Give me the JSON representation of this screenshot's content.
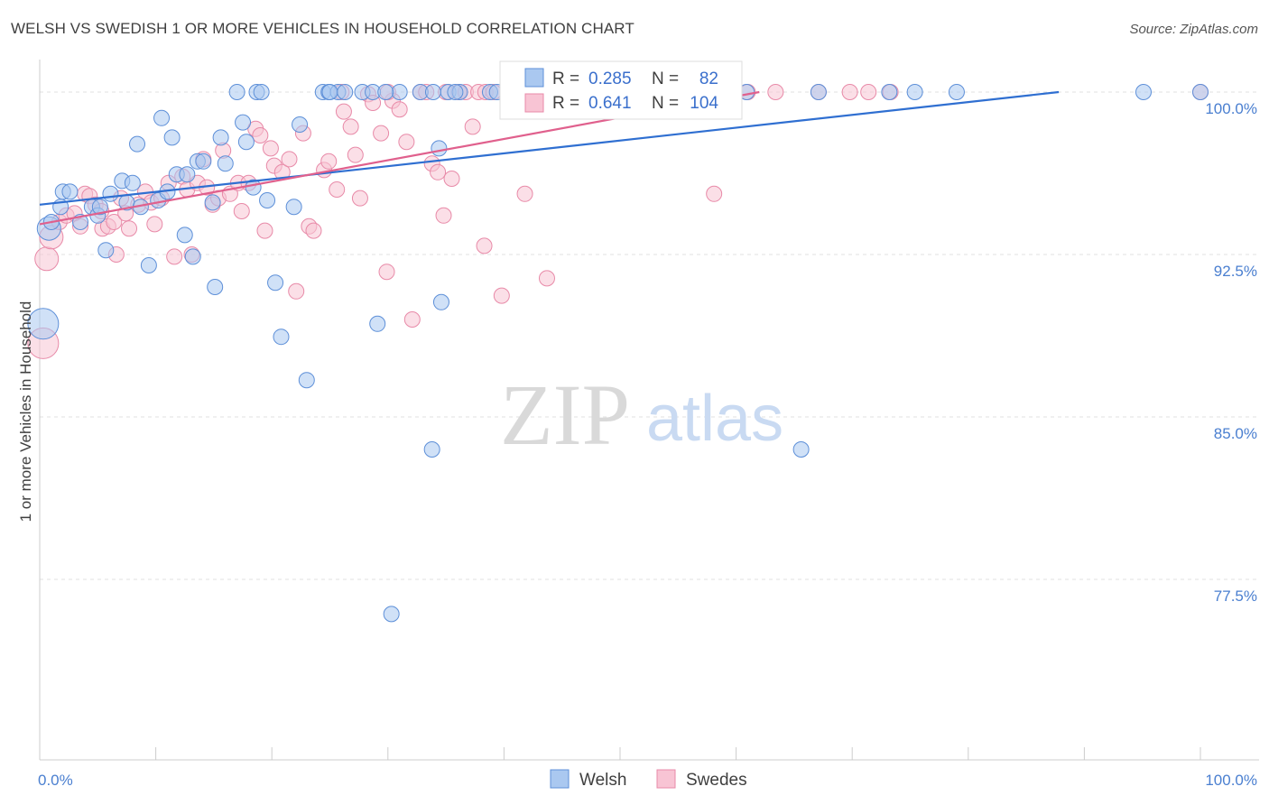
{
  "title": "WELSH VS SWEDISH 1 OR MORE VEHICLES IN HOUSEHOLD CORRELATION CHART",
  "source": "Source: ZipAtlas.com",
  "watermark": {
    "zip": "ZIP",
    "atlas": "atlas"
  },
  "colors": {
    "welsh_fill": "#aac8f0",
    "welsh_stroke": "#5d8fd8",
    "welsh_line": "#2f6fd1",
    "swedes_fill": "#f8c4d4",
    "swedes_stroke": "#e88aa8",
    "swedes_line": "#e0608d",
    "tick_text": "#4a7fd0",
    "grid": "#e0e0e0"
  },
  "legend_top": {
    "rows": [
      {
        "r_label": "R =",
        "r_value": "0.285",
        "n_label": "N =",
        "n_value": "82"
      },
      {
        "r_label": "R =",
        "r_value": "0.641",
        "n_label": "N =",
        "n_value": "104"
      }
    ]
  },
  "legend_bottom": [
    "Welsh",
    "Swedes"
  ],
  "chart_data": {
    "type": "scatter",
    "ylabel": "1 or more Vehicles in Household",
    "xlabel": "",
    "xlim": [
      0,
      100
    ],
    "ylim": [
      70.0,
      101.0
    ],
    "x_tick_labels": [
      {
        "value": 0,
        "label": "0.0%"
      },
      {
        "value": 100,
        "label": "100.0%"
      }
    ],
    "y_ticks": [
      {
        "value": 100.0,
        "label": "100.0%"
      },
      {
        "value": 92.5,
        "label": "92.5%"
      },
      {
        "value": 85.0,
        "label": "85.0%"
      },
      {
        "value": 77.5,
        "label": "77.5%"
      }
    ],
    "grid": true,
    "series": [
      {
        "name": "Welsh",
        "trend": {
          "x0": 0,
          "y0": 94.8,
          "x1": 87.8,
          "y1": 100.0
        },
        "points": [
          [
            0.8,
            93.7,
            2
          ],
          [
            0.3,
            89.3,
            3
          ],
          [
            1.0,
            94.0,
            1
          ],
          [
            1.8,
            94.7,
            1
          ],
          [
            2.0,
            95.4,
            1
          ],
          [
            2.6,
            95.4,
            1
          ],
          [
            3.5,
            94.0,
            1
          ],
          [
            4.5,
            94.7,
            1
          ],
          [
            5.0,
            94.3,
            1
          ],
          [
            5.2,
            94.7,
            1
          ],
          [
            5.7,
            92.7,
            1
          ],
          [
            6.1,
            95.3,
            1
          ],
          [
            7.1,
            95.9,
            1
          ],
          [
            7.5,
            94.9,
            1
          ],
          [
            8.0,
            95.8,
            1
          ],
          [
            8.4,
            97.6,
            1
          ],
          [
            8.7,
            94.7,
            1
          ],
          [
            9.4,
            92.0,
            1
          ],
          [
            10.2,
            95.0,
            1
          ],
          [
            10.5,
            98.8,
            1
          ],
          [
            11.0,
            95.4,
            1
          ],
          [
            11.4,
            97.9,
            1
          ],
          [
            11.8,
            96.2,
            1
          ],
          [
            12.5,
            93.4,
            1
          ],
          [
            12.7,
            96.2,
            1
          ],
          [
            13.2,
            92.4,
            1
          ],
          [
            13.6,
            96.8,
            1
          ],
          [
            14.1,
            96.8,
            1
          ],
          [
            14.9,
            94.9,
            1
          ],
          [
            15.1,
            91.0,
            1
          ],
          [
            15.6,
            97.9,
            1
          ],
          [
            16.0,
            96.7,
            1
          ],
          [
            17.0,
            100.0,
            1
          ],
          [
            17.5,
            98.6,
            1
          ],
          [
            17.8,
            97.7,
            1
          ],
          [
            18.4,
            95.6,
            1
          ],
          [
            18.7,
            100.0,
            1
          ],
          [
            19.1,
            100.0,
            1
          ],
          [
            19.6,
            95.0,
            1
          ],
          [
            20.3,
            91.2,
            1
          ],
          [
            20.8,
            88.7,
            1
          ],
          [
            21.9,
            94.7,
            1
          ],
          [
            22.4,
            98.5,
            1
          ],
          [
            23.0,
            86.7,
            1
          ],
          [
            24.4,
            100.0,
            1
          ],
          [
            24.9,
            100.0,
            1
          ],
          [
            25.7,
            100.0,
            1
          ],
          [
            27.8,
            100.0,
            1
          ],
          [
            28.7,
            100.0,
            1
          ],
          [
            29.1,
            89.3,
            1
          ],
          [
            30.3,
            75.9,
            1
          ],
          [
            31.0,
            100.0,
            1
          ],
          [
            32.8,
            100.0,
            1
          ],
          [
            33.9,
            100.0,
            1
          ],
          [
            34.4,
            97.4,
            1
          ],
          [
            35.2,
            100.0,
            1
          ],
          [
            33.8,
            83.5,
            1
          ],
          [
            34.6,
            90.3,
            1
          ],
          [
            36.2,
            100.0,
            1
          ],
          [
            38.8,
            100.0,
            1
          ],
          [
            40.9,
            100.0,
            1
          ],
          [
            41.5,
            100.0,
            1
          ],
          [
            42.6,
            100.0,
            1
          ],
          [
            43.1,
            100.0,
            1
          ],
          [
            45.3,
            100.0,
            1
          ],
          [
            48.5,
            100.0,
            1
          ],
          [
            51.0,
            100.0,
            1
          ],
          [
            54.3,
            100.0,
            1
          ],
          [
            60.9,
            100.0,
            1
          ],
          [
            65.6,
            83.5,
            1
          ],
          [
            67.1,
            100.0,
            1
          ],
          [
            73.2,
            100.0,
            1
          ],
          [
            75.4,
            100.0,
            1
          ],
          [
            79.0,
            100.0,
            1
          ],
          [
            95.1,
            100.0,
            1
          ],
          [
            100.0,
            100.0,
            1
          ],
          [
            25.0,
            100.0,
            1
          ],
          [
            26.3,
            100.0,
            1
          ],
          [
            29.8,
            100.0,
            1
          ],
          [
            35.8,
            100.0,
            1
          ],
          [
            39.4,
            100.0,
            1
          ],
          [
            42.0,
            100.0,
            1
          ]
        ]
      },
      {
        "name": "Swedes",
        "trend": {
          "x0": 0,
          "y0": 93.9,
          "x1": 62.0,
          "y1": 100.0
        },
        "points": [
          [
            0.6,
            92.3,
            2
          ],
          [
            0.3,
            88.4,
            3
          ],
          [
            1.0,
            93.3,
            2
          ],
          [
            1.7,
            94.0,
            1
          ],
          [
            2.3,
            94.3,
            1
          ],
          [
            3.0,
            94.4,
            1
          ],
          [
            3.5,
            93.8,
            1
          ],
          [
            3.9,
            95.3,
            1
          ],
          [
            4.3,
            95.2,
            1
          ],
          [
            4.8,
            94.8,
            1
          ],
          [
            5.3,
            94.5,
            1
          ],
          [
            5.4,
            93.7,
            1
          ],
          [
            5.9,
            93.8,
            1
          ],
          [
            6.4,
            94.0,
            1
          ],
          [
            6.6,
            92.5,
            1
          ],
          [
            7.0,
            95.1,
            1
          ],
          [
            7.4,
            94.4,
            1
          ],
          [
            7.7,
            93.7,
            1
          ],
          [
            8.5,
            94.8,
            1
          ],
          [
            9.1,
            95.4,
            1
          ],
          [
            9.6,
            94.9,
            1
          ],
          [
            9.9,
            93.9,
            1
          ],
          [
            10.5,
            95.1,
            1
          ],
          [
            11.1,
            95.8,
            1
          ],
          [
            11.6,
            92.4,
            1
          ],
          [
            12.3,
            96.1,
            1
          ],
          [
            12.7,
            95.5,
            1
          ],
          [
            13.1,
            92.5,
            1
          ],
          [
            13.6,
            95.8,
            1
          ],
          [
            14.1,
            96.9,
            1
          ],
          [
            14.4,
            95.6,
            1
          ],
          [
            14.9,
            94.8,
            1
          ],
          [
            15.4,
            95.1,
            1
          ],
          [
            15.8,
            97.3,
            1
          ],
          [
            16.4,
            95.3,
            1
          ],
          [
            17.1,
            95.8,
            1
          ],
          [
            17.4,
            94.5,
            1
          ],
          [
            18.0,
            95.8,
            1
          ],
          [
            18.6,
            98.3,
            1
          ],
          [
            19.0,
            98.0,
            1
          ],
          [
            19.4,
            93.6,
            1
          ],
          [
            19.9,
            97.4,
            1
          ],
          [
            20.2,
            96.6,
            1
          ],
          [
            20.9,
            96.3,
            1
          ],
          [
            21.5,
            96.9,
            1
          ],
          [
            22.1,
            90.8,
            1
          ],
          [
            22.7,
            98.1,
            1
          ],
          [
            23.2,
            93.8,
            1
          ],
          [
            23.6,
            93.6,
            1
          ],
          [
            24.5,
            96.4,
            1
          ],
          [
            24.9,
            96.8,
            1
          ],
          [
            25.6,
            95.5,
            1
          ],
          [
            26.2,
            99.1,
            1
          ],
          [
            26.8,
            98.4,
            1
          ],
          [
            27.2,
            97.1,
            1
          ],
          [
            27.6,
            95.1,
            1
          ],
          [
            28.3,
            99.9,
            1
          ],
          [
            28.7,
            99.5,
            1
          ],
          [
            29.4,
            98.1,
            1
          ],
          [
            29.9,
            91.7,
            1
          ],
          [
            30.4,
            99.6,
            1
          ],
          [
            31.0,
            99.2,
            1
          ],
          [
            31.6,
            97.7,
            1
          ],
          [
            32.1,
            89.5,
            1
          ],
          [
            32.8,
            100.0,
            1
          ],
          [
            33.3,
            100.0,
            1
          ],
          [
            33.8,
            96.7,
            1
          ],
          [
            34.3,
            96.3,
            1
          ],
          [
            34.8,
            94.3,
            1
          ],
          [
            35.5,
            96.0,
            1
          ],
          [
            36.1,
            100.0,
            1
          ],
          [
            36.7,
            100.0,
            1
          ],
          [
            37.3,
            98.4,
            1
          ],
          [
            37.8,
            100.0,
            1
          ],
          [
            38.4,
            100.0,
            1
          ],
          [
            38.3,
            92.9,
            1
          ],
          [
            39.1,
            100.0,
            1
          ],
          [
            39.8,
            90.6,
            1
          ],
          [
            40.5,
            100.0,
            1
          ],
          [
            41.3,
            100.0,
            1
          ],
          [
            41.8,
            95.3,
            1
          ],
          [
            42.4,
            100.0,
            1
          ],
          [
            43.0,
            100.0,
            1
          ],
          [
            43.7,
            91.4,
            1
          ],
          [
            44.6,
            100.0,
            1
          ],
          [
            46.1,
            100.0,
            1
          ],
          [
            47.6,
            100.0,
            1
          ],
          [
            48.7,
            100.0,
            1
          ],
          [
            49.8,
            100.0,
            1
          ],
          [
            51.2,
            100.0,
            1
          ],
          [
            52.7,
            100.0,
            1
          ],
          [
            55.4,
            100.0,
            1
          ],
          [
            56.9,
            100.0,
            1
          ],
          [
            58.1,
            95.3,
            1
          ],
          [
            61.0,
            100.0,
            1
          ],
          [
            63.4,
            100.0,
            1
          ],
          [
            67.1,
            100.0,
            1
          ],
          [
            69.8,
            100.0,
            1
          ],
          [
            71.4,
            100.0,
            1
          ],
          [
            73.3,
            100.0,
            1
          ],
          [
            100.0,
            100.0,
            1
          ],
          [
            26.0,
            100.0,
            1
          ],
          [
            30.0,
            100.0,
            1
          ],
          [
            35.0,
            100.0,
            1
          ]
        ]
      }
    ]
  }
}
